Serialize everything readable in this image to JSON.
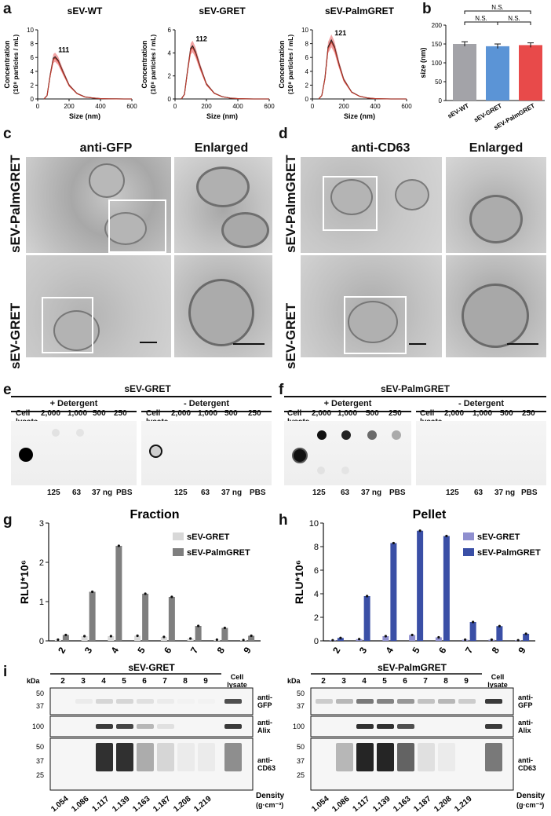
{
  "panel_labels": {
    "a": "a",
    "b": "b",
    "c": "c",
    "d": "d",
    "e": "e",
    "f": "f",
    "g": "g",
    "h": "h",
    "i": "i"
  },
  "chart_data": [
    {
      "id": "a1",
      "type": "line",
      "title": "sEV-WT",
      "xlabel": "Size (nm)",
      "ylabel": "Concentration",
      "ylabel2": "(10⁸ particles / mL)",
      "xlim": [
        0,
        600
      ],
      "ylim": [
        0,
        10
      ],
      "xticks": [
        "0",
        "200",
        "400",
        "600"
      ],
      "yticks": [
        "0",
        "2",
        "4",
        "6",
        "8",
        "10"
      ],
      "peak_label": "111",
      "x": [
        40,
        60,
        80,
        100,
        111,
        130,
        160,
        200,
        250,
        300,
        350,
        400,
        450,
        500,
        550,
        600
      ],
      "y": [
        0,
        0.5,
        3.5,
        5.9,
        6.1,
        5.6,
        4.0,
        2.0,
        0.8,
        0.3,
        0.15,
        0.05,
        0.02,
        0.01,
        0,
        0
      ]
    },
    {
      "id": "a2",
      "type": "line",
      "title": "sEV-GRET",
      "xlabel": "Size (nm)",
      "ylabel": "Concentration",
      "ylabel2": "(10⁸ particles / mL)",
      "xlim": [
        0,
        600
      ],
      "ylim": [
        0,
        6
      ],
      "xticks": [
        "0",
        "200",
        "400",
        "600"
      ],
      "yticks": [
        "0",
        "2",
        "4",
        "6"
      ],
      "peak_label": "112",
      "x": [
        40,
        60,
        80,
        100,
        112,
        130,
        160,
        200,
        250,
        300,
        350,
        400,
        450,
        500,
        550,
        600
      ],
      "y": [
        0,
        0.4,
        2.5,
        4.4,
        4.6,
        4.1,
        2.8,
        1.3,
        0.5,
        0.2,
        0.08,
        0.03,
        0.01,
        0,
        0,
        0
      ]
    },
    {
      "id": "a3",
      "type": "line",
      "title": "sEV-PalmGRET",
      "xlabel": "Size (nm)",
      "ylabel": "Concentration",
      "ylabel2": "(10⁸ particles / mL)",
      "xlim": [
        0,
        600
      ],
      "ylim": [
        0,
        10
      ],
      "xticks": [
        "0",
        "200",
        "400",
        "600"
      ],
      "yticks": [
        "0",
        "2",
        "4",
        "6",
        "8",
        "10"
      ],
      "peak_label": "121",
      "x": [
        40,
        60,
        80,
        100,
        121,
        140,
        170,
        200,
        250,
        300,
        350,
        400,
        450,
        500,
        550,
        600
      ],
      "y": [
        0,
        0.5,
        3.0,
        7.5,
        8.5,
        7.6,
        5.0,
        2.8,
        1.0,
        0.4,
        0.15,
        0.05,
        0.02,
        0,
        0,
        0
      ]
    },
    {
      "id": "b",
      "type": "bar",
      "categories": [
        "sEV-WT",
        "sEV-GRET",
        "sEV-PalmGRET"
      ],
      "values": [
        150,
        144,
        147
      ],
      "colors": [
        "#a3a3a8",
        "#5b94d6",
        "#e84a4a"
      ],
      "ylabel": "size (nm)",
      "ylim": [
        0,
        200
      ],
      "yticks": [
        "0",
        "50",
        "100",
        "150",
        "200"
      ],
      "significance": [
        "N.S.",
        "N.S.",
        "N.S."
      ]
    },
    {
      "id": "g",
      "type": "bar",
      "title": "Fraction",
      "ylabel": "RLU*10⁶",
      "ylim": [
        0,
        3
      ],
      "yticks": [
        "0",
        "1",
        "2",
        "3"
      ],
      "categories": [
        "2",
        "3",
        "4",
        "5",
        "6",
        "7",
        "8",
        "9"
      ],
      "series": [
        {
          "name": "sEV-GRET",
          "color": "#d8d8d8",
          "values": [
            0.03,
            0.12,
            0.12,
            0.13,
            0.1,
            0.06,
            0.03,
            0.02
          ]
        },
        {
          "name": "sEV-PalmGRET",
          "color": "#7f7f7f",
          "values": [
            0.15,
            1.25,
            2.42,
            1.2,
            1.12,
            0.38,
            0.33,
            0.13
          ]
        }
      ]
    },
    {
      "id": "h",
      "type": "bar",
      "title": "Pellet",
      "ylabel": "RLU*10⁶",
      "ylim": [
        0,
        10
      ],
      "yticks": [
        "0",
        "2",
        "4",
        "6",
        "8",
        "10"
      ],
      "categories": [
        "2",
        "3",
        "4",
        "5",
        "6",
        "7",
        "8",
        "9"
      ],
      "series": [
        {
          "name": "sEV-GRET",
          "color": "#8f8fcf",
          "values": [
            0.05,
            0.15,
            0.4,
            0.5,
            0.3,
            0.1,
            0.1,
            0.05
          ]
        },
        {
          "name": "sEV-PalmGRET",
          "color": "#3a4fa6",
          "values": [
            0.25,
            3.8,
            8.3,
            9.35,
            8.9,
            1.6,
            1.25,
            0.6
          ]
        }
      ]
    }
  ],
  "em": {
    "c_title1": "anti-GFP",
    "c_title2": "Enlarged",
    "d_title1": "anti-CD63",
    "d_title2": "Enlarged",
    "row1": "sEV-PalmGRET",
    "row2": "sEV-GRET"
  },
  "dot": {
    "e_title": "sEV-GRET",
    "f_title": "sEV-PalmGRET",
    "plus": "+ Detergent",
    "minus": "- Detergent",
    "cell": "Cell",
    "lysate": "lysate",
    "top": [
      "2,000",
      "1,000",
      "500",
      "250"
    ],
    "bottom": [
      "125",
      "63",
      "37 ng",
      "PBS"
    ]
  },
  "wb": {
    "left_title": "sEV-GRET",
    "right_title": "sEV-PalmGRET",
    "kda": "kDa",
    "lanes": [
      "2",
      "3",
      "4",
      "5",
      "6",
      "7",
      "8",
      "9"
    ],
    "cell": "Cell",
    "lysate": "lysate",
    "gfp": [
      "anti-",
      "GFP"
    ],
    "alix": [
      "anti-",
      "Alix"
    ],
    "cd63": [
      "anti-",
      "CD63"
    ],
    "mw_gfp": [
      "50",
      "37"
    ],
    "mw_alix": [
      "100"
    ],
    "mw_cd63": [
      "50",
      "37",
      "25"
    ],
    "density": [
      "1.054",
      "1.086",
      "1.117",
      "1.139",
      "1.163",
      "1.187",
      "1.208",
      "1.219"
    ],
    "density_label": "Density",
    "density_unit": "(g·cm⁻³)"
  }
}
